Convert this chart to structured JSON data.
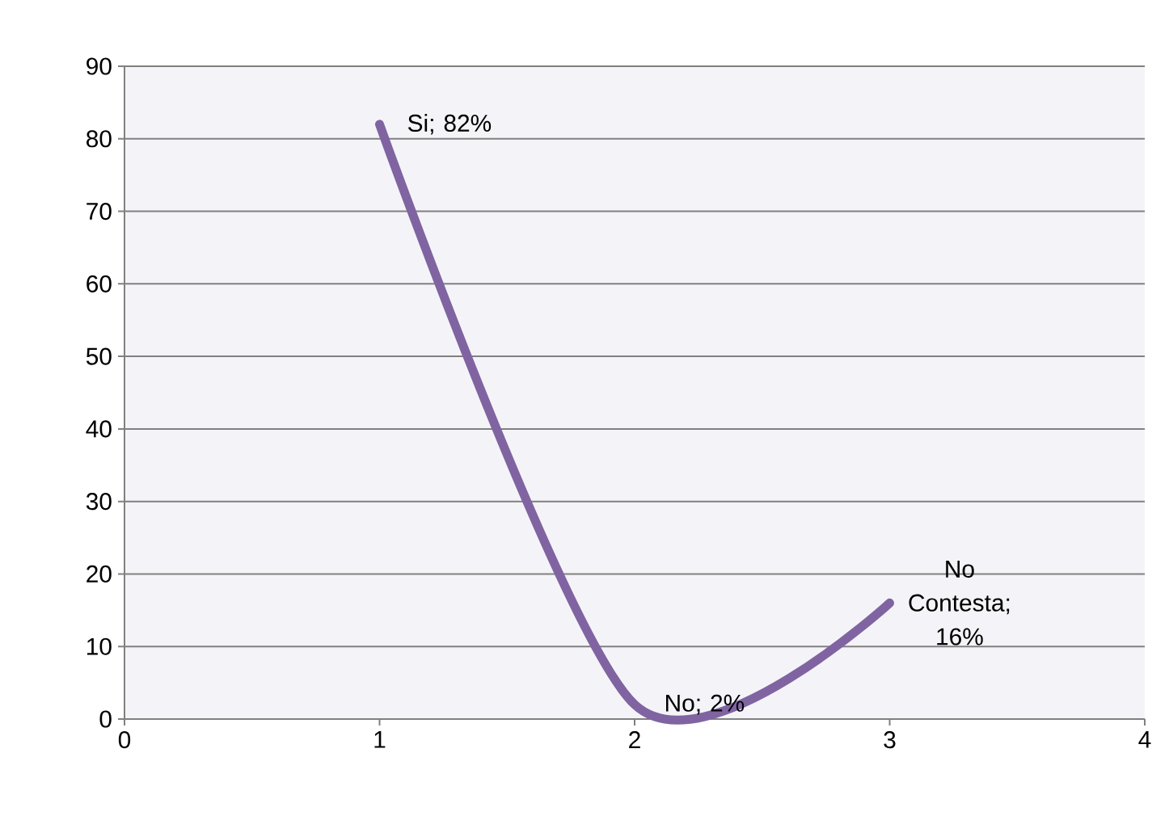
{
  "chart_data": {
    "type": "line",
    "x": [
      1,
      2,
      3
    ],
    "series": [
      {
        "color": "#8064a2",
        "values": [
          82,
          2,
          16
        ],
        "value_labels": [
          "Si; 82%",
          "No; 2%",
          "No Contesta; 16%"
        ]
      }
    ],
    "xlim": [
      0,
      4
    ],
    "xticks": [
      0,
      1,
      2,
      3,
      4
    ],
    "ylim": [
      0,
      90
    ],
    "yticks": [
      0,
      10,
      20,
      30,
      40,
      50,
      60,
      70,
      80,
      90
    ],
    "grid": "y",
    "marker": "none",
    "line_style": "solid"
  }
}
